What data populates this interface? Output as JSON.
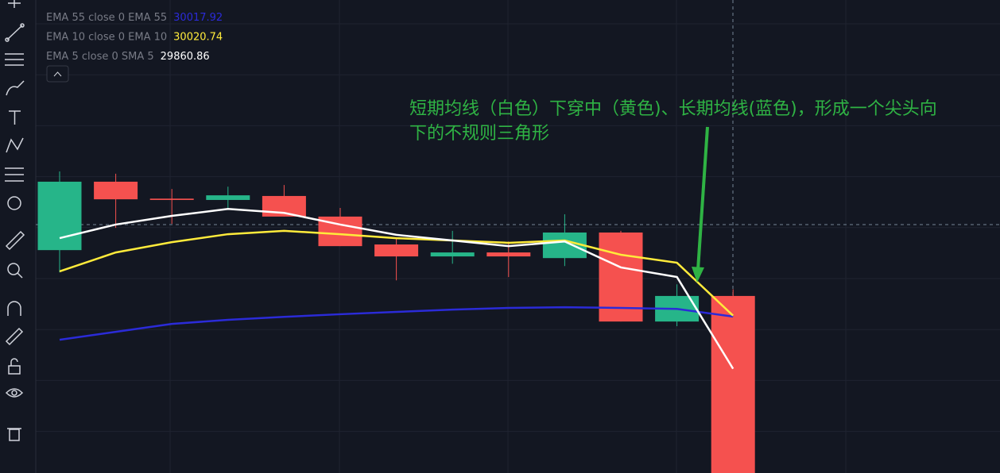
{
  "chart_data": {
    "type": "candlestick",
    "categories": [
      null,
      null,
      null,
      null,
      null,
      null,
      null,
      null,
      null,
      null,
      null,
      null,
      null
    ],
    "open": [
      30218,
      30424,
      30373,
      30369,
      30381,
      30319,
      30235,
      30199,
      30211,
      30194,
      30271,
      30003,
      30080
    ],
    "high": [
      30455,
      30448,
      30402,
      30409,
      30414,
      30345,
      30254,
      30276,
      30244,
      30326,
      30276,
      30115,
      30100
    ],
    "low": [
      30151,
      30285,
      30297,
      30345,
      30319,
      30230,
      30127,
      30177,
      30137,
      30170,
      30003,
      29989,
      29547
    ],
    "close": [
      30424,
      30371,
      30369,
      30383,
      30319,
      30230,
      30199,
      30211,
      30199,
      30271,
      30003,
      30080,
      29547
    ],
    "up_color": "#26b589",
    "down_color": "#f5514f",
    "series": [
      {
        "name": "EMA 55 close 0 EMA 55",
        "color": "#2b2bd8",
        "values": [
          29948,
          29972,
          29996,
          30008,
          30017,
          30025,
          30032,
          30039,
          30044,
          30046,
          30044,
          30041,
          30017.92
        ]
      },
      {
        "name": "EMA 10 close 0 EMA 10",
        "color": "#ffeb3b",
        "values": [
          30154,
          30211,
          30242,
          30266,
          30276,
          30266,
          30254,
          30247,
          30240,
          30247,
          30204,
          30180,
          30020.74
        ]
      },
      {
        "name": "EMA 5 close 0 SMA 5",
        "color": "#ffffff",
        "values": [
          30254,
          30295,
          30321,
          30342,
          30330,
          30295,
          30264,
          30247,
          30230,
          30244,
          30166,
          30137,
          29860.86
        ]
      }
    ],
    "ylim": [
      29547,
      30971
    ],
    "grid": true,
    "annotation": [
      "短期均线（白色）下穿中（黄色)、长期均线(蓝色)，形成一个尖头向",
      "下的不规则三角形"
    ],
    "annotation_color": "#2fb344"
  }
}
